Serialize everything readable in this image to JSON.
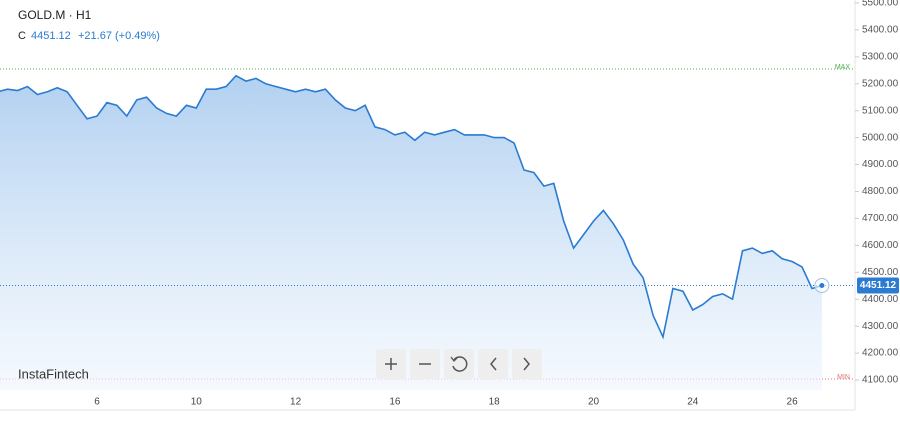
{
  "header": {
    "symbol": "GOLD.M · H1",
    "close_label": "C",
    "close": 4451.12,
    "change": "+21.67 (+0.49%)",
    "brand": "InstaFintech"
  },
  "chart_data": {
    "type": "area",
    "categories": [
      null,
      null,
      null,
      null,
      null,
      null,
      null,
      null,
      null,
      null,
      "6",
      null,
      null,
      null,
      null,
      null,
      null,
      null,
      null,
      null,
      "10",
      null,
      null,
      null,
      null,
      null,
      null,
      null,
      null,
      null,
      "12",
      null,
      null,
      null,
      null,
      null,
      null,
      null,
      null,
      null,
      "16",
      null,
      null,
      null,
      null,
      null,
      null,
      null,
      null,
      null,
      "18",
      null,
      null,
      null,
      null,
      null,
      null,
      null,
      null,
      null,
      "20",
      null,
      null,
      null,
      null,
      null,
      null,
      null,
      null,
      null,
      "24",
      null,
      null,
      null,
      null,
      null,
      null,
      null,
      null,
      null,
      "26",
      null,
      null,
      null
    ],
    "series": [
      {
        "name": "GOLD.M",
        "color": "#2a7bd1",
        "values": [
          5170,
          5180,
          5175,
          5190,
          5160,
          5170,
          5185,
          5170,
          5120,
          5070,
          5080,
          5130,
          5120,
          5080,
          5140,
          5150,
          5110,
          5090,
          5080,
          5120,
          5110,
          5180,
          5180,
          5190,
          5230,
          5210,
          5220,
          5200,
          5190,
          5180,
          5170,
          5180,
          5170,
          5180,
          5140,
          5110,
          5100,
          5120,
          5040,
          5030,
          5010,
          5020,
          4990,
          5020,
          5010,
          5020,
          5030,
          5010,
          5010,
          5010,
          5000,
          5000,
          4980,
          4880,
          4870,
          4820,
          4830,
          4690,
          4590,
          4640,
          4690,
          4730,
          4680,
          4620,
          4530,
          4480,
          4340,
          4260,
          4440,
          4430,
          4360,
          4380,
          4410,
          4420,
          4400,
          4580,
          4590,
          4570,
          4580,
          4550,
          4540,
          4520,
          4440,
          4451.12
        ]
      }
    ],
    "ylim": [
      4063,
      5511
    ],
    "yticks": [
      {
        "value": 4100,
        "label": "4100.00"
      },
      {
        "value": 4200,
        "label": "4200.00"
      },
      {
        "value": 4300,
        "label": "4300.00"
      },
      {
        "value": 4400,
        "label": "4400.00"
      },
      {
        "value": 4500,
        "label": "4500.00"
      },
      {
        "value": 4600,
        "label": "4600.00"
      },
      {
        "value": 4700,
        "label": "4700.00"
      },
      {
        "value": 4800,
        "label": "4800.00"
      },
      {
        "value": 4900,
        "label": "4900.00"
      },
      {
        "value": 5000,
        "label": "5000.00"
      },
      {
        "value": 5100,
        "label": "5100.00"
      },
      {
        "value": 5200,
        "label": "5200.00"
      },
      {
        "value": 5300,
        "label": "5300.00"
      },
      {
        "value": 5400,
        "label": "5400.00"
      },
      {
        "value": 5500,
        "label": "5500.00"
      }
    ],
    "max_line": {
      "label": "MAX",
      "value": 5255,
      "color": "#4caf50"
    },
    "min_line": {
      "label": "MIN",
      "value": 4104,
      "color": "#e57373"
    }
  }
}
